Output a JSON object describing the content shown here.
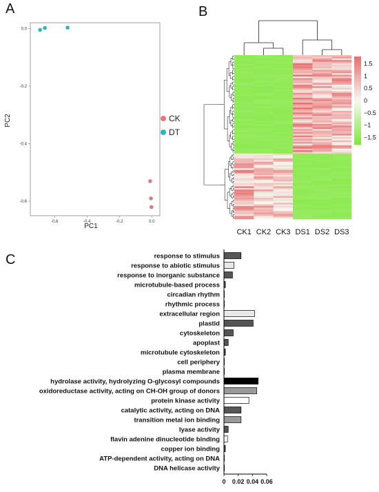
{
  "panels": {
    "a": "A",
    "b": "B",
    "c": "C"
  },
  "chart_data": [
    {
      "type": "scatter",
      "panel": "A",
      "xlabel": "PC1",
      "ylabel": "PC2",
      "xlim": [
        -0.75,
        0.05
      ],
      "ylim": [
        -0.65,
        0.02
      ],
      "xticks": [
        -0.6,
        -0.4,
        -0.2,
        0.0
      ],
      "xtick_labels": [
        "-0.6",
        "-0.4",
        "-0.2",
        "0.0"
      ],
      "yticks": [
        0.0,
        -0.2,
        -0.4,
        -0.6
      ],
      "ytick_labels": [
        "0.0",
        "-0.2",
        "-0.4",
        "-0.6"
      ],
      "legend_position": "right",
      "series": [
        {
          "name": "CK",
          "color": "#e8777a",
          "x": [
            -0.01,
            -0.005,
            -0.002
          ],
          "y": [
            -0.53,
            -0.59,
            -0.62
          ]
        },
        {
          "name": "DT",
          "color": "#2bb5bd",
          "x": [
            -0.69,
            -0.66,
            -0.52
          ],
          "y": [
            -0.005,
            0.002,
            0.003
          ]
        }
      ]
    },
    {
      "type": "heatmap",
      "panel": "B",
      "columns": [
        "CK1",
        "CK2",
        "CK3",
        "DS1",
        "DS2",
        "DS3"
      ],
      "colorbar_ticks": [
        1.5,
        1,
        0.5,
        0,
        -0.5,
        -1,
        -1.5
      ],
      "colorbar_labels": [
        "1.5",
        "1",
        "0.5",
        "0",
        "−0.5",
        "−1",
        "−1.5"
      ],
      "vmin": -1.8,
      "vmax": 1.8,
      "colors": {
        "low": "#7ee83a",
        "mid": "#f7f7f2",
        "high": "#e76f6f"
      },
      "clusters": [
        {
          "rows": 60,
          "CK1": -1.5,
          "CK2": -1.5,
          "CK3": -1.5,
          "DS1": 1.0,
          "DS2": 0.9,
          "DS3": 0.8
        },
        {
          "rows": 40,
          "CK1": 0.9,
          "CK2": 0.6,
          "CK3": 0.5,
          "DS1": -1.5,
          "DS2": -1.5,
          "DS3": -1.5
        }
      ]
    },
    {
      "type": "bar",
      "panel": "C",
      "orientation": "horizontal",
      "xlim": [
        0,
        0.06
      ],
      "xticks": [
        0,
        0.02,
        0.04,
        0.06
      ],
      "xtick_labels": [
        "0",
        "0.02",
        "0.04",
        "0.06"
      ],
      "categories": [
        "response to stimulus",
        "response to abiotic stimulus",
        "response to inorganic substance",
        "microtubule-based process",
        "circadian rhythm",
        "rhythmic process",
        "extracellular region",
        "plastid",
        "cytoskeleton",
        "apoplast",
        "microtubule cytoskeleton",
        "cell periphery",
        "plasma membrane",
        "hydrolase activity, hydrolyzing O-glycosyl compounds",
        "oxidoreductase activity, acting on CH-OH group of donors",
        "protein kinase activity",
        "catalytic activity, acting on DNA",
        "transition metal ion binding",
        "lyase activity",
        "flavin adenine dinucleotide binding",
        "copper ion binding",
        "ATP-dependent activity, acting on DNA",
        "DNA helicase activity"
      ],
      "values": [
        0.024,
        0.014,
        0.012,
        0.002,
        0.0005,
        0.0005,
        0.043,
        0.041,
        0.013,
        0.006,
        0.002,
        0.0005,
        0.0005,
        0.048,
        0.046,
        0.035,
        0.024,
        0.024,
        0.006,
        0.005,
        0.002,
        0.0005,
        0.0003
      ],
      "bar_colors": [
        "#555555",
        "#e8e8e8",
        "#555555",
        "#555555",
        "#555555",
        "#555555",
        "#e8e8e8",
        "#555555",
        "#555555",
        "#555555",
        "#555555",
        "#555555",
        "#555555",
        "#000000",
        "#999999",
        "#ffffff",
        "#555555",
        "#999999",
        "#555555",
        "#ffffff",
        "#555555",
        "#555555",
        "#555555"
      ]
    }
  ]
}
